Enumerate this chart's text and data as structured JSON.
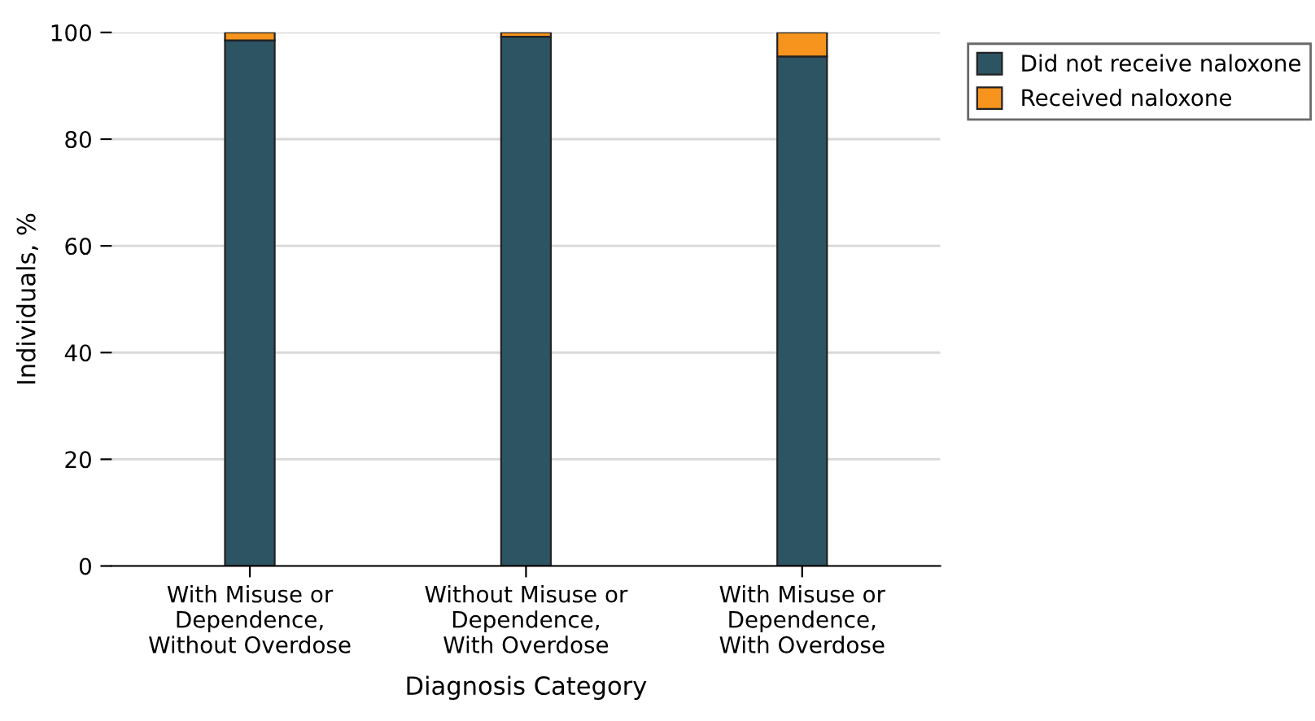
{
  "chart_data": {
    "type": "bar",
    "stacked": true,
    "xlabel": "Diagnosis Category",
    "ylabel": "Individuals, %",
    "categories": [
      "With Misuse or\nDependence,\nWithout Overdose",
      "Without Misuse or\nDependence,\nWith Overdose",
      "With Misuse or\nDependence,\nWith Overdose"
    ],
    "series": [
      {
        "name": "Did not receive naloxone",
        "color": "#2d5463",
        "values": [
          98.5,
          99.2,
          95.5
        ]
      },
      {
        "name": "Received naloxone",
        "color": "#f7941d",
        "values": [
          1.5,
          0.8,
          4.5
        ]
      }
    ],
    "ylim": [
      0,
      100
    ],
    "yticks": [
      0,
      20,
      40,
      60,
      80,
      100
    ],
    "grid": "y",
    "legend": "top right"
  }
}
